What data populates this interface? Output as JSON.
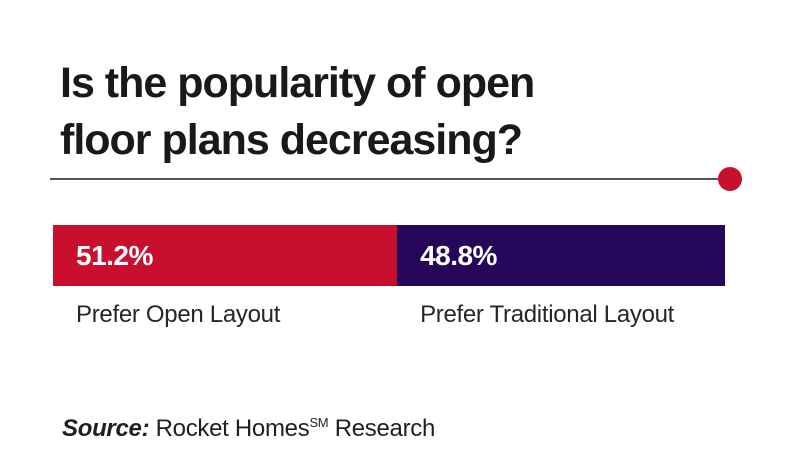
{
  "title": {
    "lines": [
      "Is the popularity of open",
      "floor plans decreasing?"
    ]
  },
  "divider": {
    "line_color": "#555555",
    "dot_color": "#C8102E"
  },
  "chart_data": {
    "type": "bar",
    "orientation": "horizontal_stacked",
    "title": "Is the popularity of open floor plans decreasing?",
    "categories": [
      "Prefer Open Layout",
      "Prefer Traditional Layout"
    ],
    "values": [
      51.2,
      48.8
    ],
    "value_labels": [
      "51.2%",
      "48.8%"
    ],
    "colors": [
      "#C8102E",
      "#26065A"
    ],
    "unit": "%",
    "total": 100,
    "legend": "none",
    "grid": false,
    "value_label_color": "#FFFFFF"
  },
  "source": {
    "label": "Source:",
    "brand": "Rocket Homes",
    "superscript": "SM",
    "suffix": "Research"
  }
}
